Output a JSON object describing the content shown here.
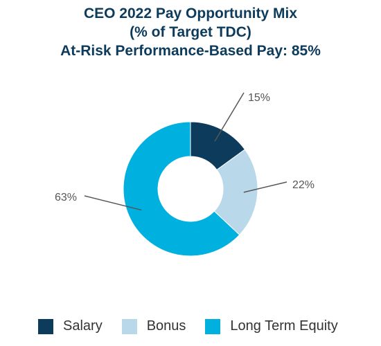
{
  "chart_data": {
    "type": "pie",
    "donut": true,
    "title_lines": [
      "CEO 2022 Pay Opportunity Mix",
      "(% of Target TDC)",
      "At-Risk Performance-Based Pay: 85%"
    ],
    "categories": [
      "Salary",
      "Bonus",
      "Long Term Equity"
    ],
    "values": [
      15,
      22,
      63
    ],
    "labels": [
      "15%",
      "22%",
      "63%"
    ],
    "colors": [
      "#0d3b5c",
      "#b9d9ea",
      "#00b0df"
    ],
    "legend_placement": "bottom"
  }
}
